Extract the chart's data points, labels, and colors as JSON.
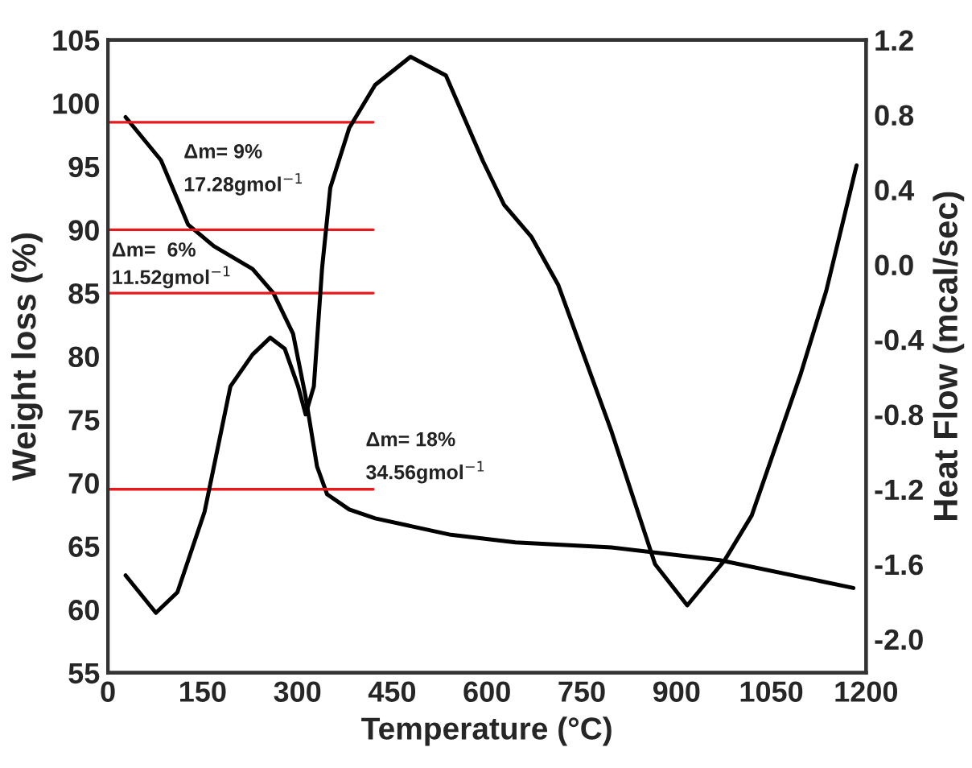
{
  "chart_data": {
    "type": "line",
    "xlabel": "Temperature (°C)",
    "ylabel": "Weight loss (%)",
    "y2label": "Heat Flow (mcal/sec)",
    "series": [
      {
        "color": "#000000",
        "x": [
          28,
          84,
          127,
          168,
          229,
          262,
          293,
          313,
          331,
          347,
          382,
          423,
          543,
          645,
          797,
          968,
          1180
        ],
        "values": [
          98.9,
          95.5,
          90.4,
          88.7,
          86.9,
          85.0,
          81.8,
          76.8,
          71.3,
          69.1,
          67.9,
          67.2,
          65.9,
          65.3,
          64.9,
          63.9,
          61.7
        ]
      },
      {
        "color": "#000000",
        "axis": "y2",
        "x": [
          28,
          76,
          110,
          153,
          194,
          229,
          257,
          280,
          301,
          313,
          326,
          339,
          352,
          382,
          423,
          479,
          535,
          594,
          627,
          670,
          713,
          797,
          866,
          917,
          976,
          1019,
          1096,
          1137,
          1185
        ],
        "values": [
          -1.66,
          -1.86,
          -1.75,
          -1.32,
          -0.65,
          -0.48,
          -0.39,
          -0.45,
          -0.65,
          -0.8,
          -0.65,
          -0.02,
          0.41,
          0.73,
          0.96,
          1.11,
          1.01,
          0.55,
          0.32,
          0.15,
          -0.11,
          -0.89,
          -1.6,
          -1.82,
          -1.58,
          -1.34,
          -0.59,
          -0.14,
          0.53
        ]
      }
    ],
    "ref_lines": [
      {
        "axis": "y",
        "value": 98.5,
        "color": "#e41a1c"
      },
      {
        "axis": "y",
        "value": 90,
        "color": "#e41a1c"
      },
      {
        "axis": "y",
        "value": 85,
        "color": "#e41a1c"
      },
      {
        "axis": "y",
        "value": 69.5,
        "color": "#e41a1c"
      }
    ],
    "annotations": [
      "Δm= 9%\n17.28gmol$^{−1}$",
      "Δm=  6%\n11.52gmol$^{−1}$",
      "Δm= 18%\n34.56gmol$^{−1}$"
    ],
    "xlim": [
      0,
      1200
    ],
    "xticks": [
      0,
      150,
      300,
      450,
      600,
      750,
      900,
      1050,
      1200
    ],
    "ylim": [
      55,
      105
    ],
    "yticks": [
      55,
      60,
      65,
      70,
      75,
      80,
      85,
      90,
      95,
      100,
      105
    ],
    "y2lim": [
      -2.18,
      1.2
    ],
    "y2ticks": [
      {
        "value": -2.0,
        "label": "-2.0"
      },
      -1.6,
      -1.2,
      -0.8,
      -0.4,
      {
        "value": 0.0,
        "label": "0.0"
      },
      0.4,
      0.8,
      1.2
    ],
    "grid": false,
    "legend": false
  }
}
